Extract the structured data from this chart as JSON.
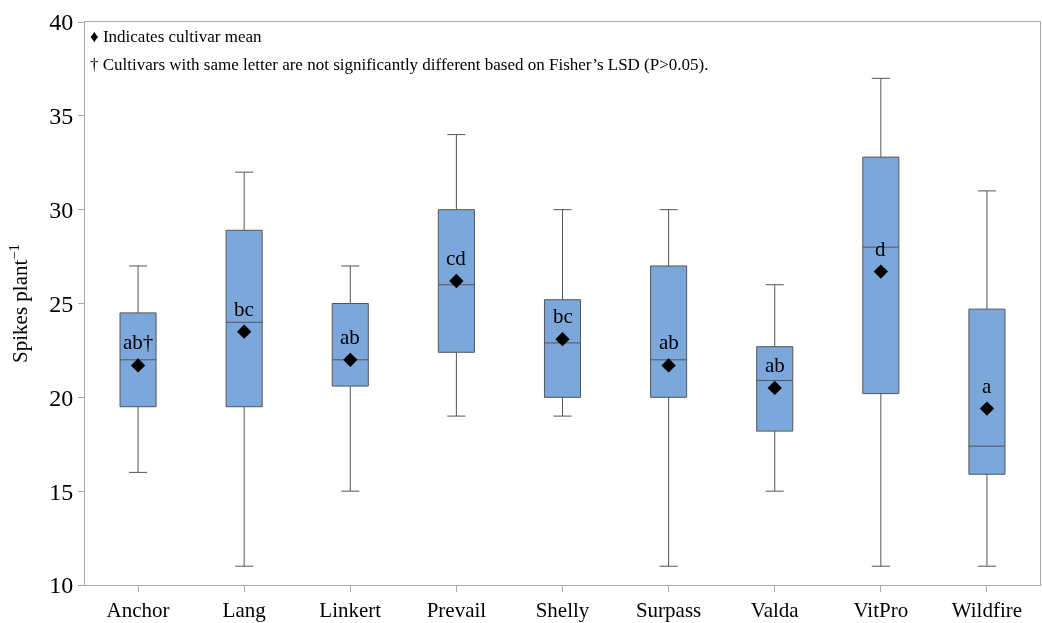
{
  "chart_data": {
    "type": "box",
    "ylabel": "Spikes plant$^{−1}$",
    "categories": [
      "Anchor",
      "Lang",
      "Linkert",
      "Prevail",
      "Shelly",
      "Surpass",
      "Valda",
      "VitPro",
      "Wildfire"
    ],
    "color": "#7ba7db",
    "boxes": [
      {
        "low": 16,
        "q1": 19.5,
        "median": 22,
        "q3": 24.5,
        "high": 27
      },
      {
        "low": 11,
        "q1": 19.5,
        "median": 24,
        "q3": 28.9,
        "high": 32
      },
      {
        "low": 15,
        "q1": 20.6,
        "median": 22,
        "q3": 25,
        "high": 27
      },
      {
        "low": 19,
        "q1": 22.4,
        "median": 26,
        "q3": 30,
        "high": 34
      },
      {
        "low": 19,
        "q1": 20,
        "median": 22.9,
        "q3": 25.2,
        "high": 30
      },
      {
        "low": 11,
        "q1": 20,
        "median": 22,
        "q3": 27,
        "high": 30
      },
      {
        "low": 15,
        "q1": 18.2,
        "median": 20.9,
        "q3": 22.7,
        "high": 26
      },
      {
        "low": 11,
        "q1": 20.2,
        "median": 28,
        "q3": 32.8,
        "high": 37
      },
      {
        "low": 11,
        "q1": 15.9,
        "median": 17.4,
        "q3": 24.7,
        "high": 31
      }
    ],
    "series": [
      {
        "type": "scatter",
        "x": [
          "Anchor",
          "Lang",
          "Linkert",
          "Prevail",
          "Shelly",
          "Surpass",
          "Valda",
          "VitPro",
          "Wildfire"
        ],
        "values": [
          21.7,
          23.5,
          22.0,
          26.2,
          23.1,
          21.7,
          20.5,
          26.7,
          19.4
        ],
        "color": "#000000",
        "marker": "diamond",
        "value_labels": [
          "ab†",
          "bc",
          "ab",
          "cd",
          "bc",
          "ab",
          "ab",
          "d",
          "a"
        ]
      }
    ],
    "ylim": [
      10,
      40
    ],
    "yticks": [
      10,
      15,
      20,
      25,
      30,
      35,
      40
    ],
    "annotations": [
      "♦ Indicates cultivar mean",
      "† Cultivars with same letter are not significantly different based on Fisher’s LSD (P>0.05)."
    ]
  }
}
